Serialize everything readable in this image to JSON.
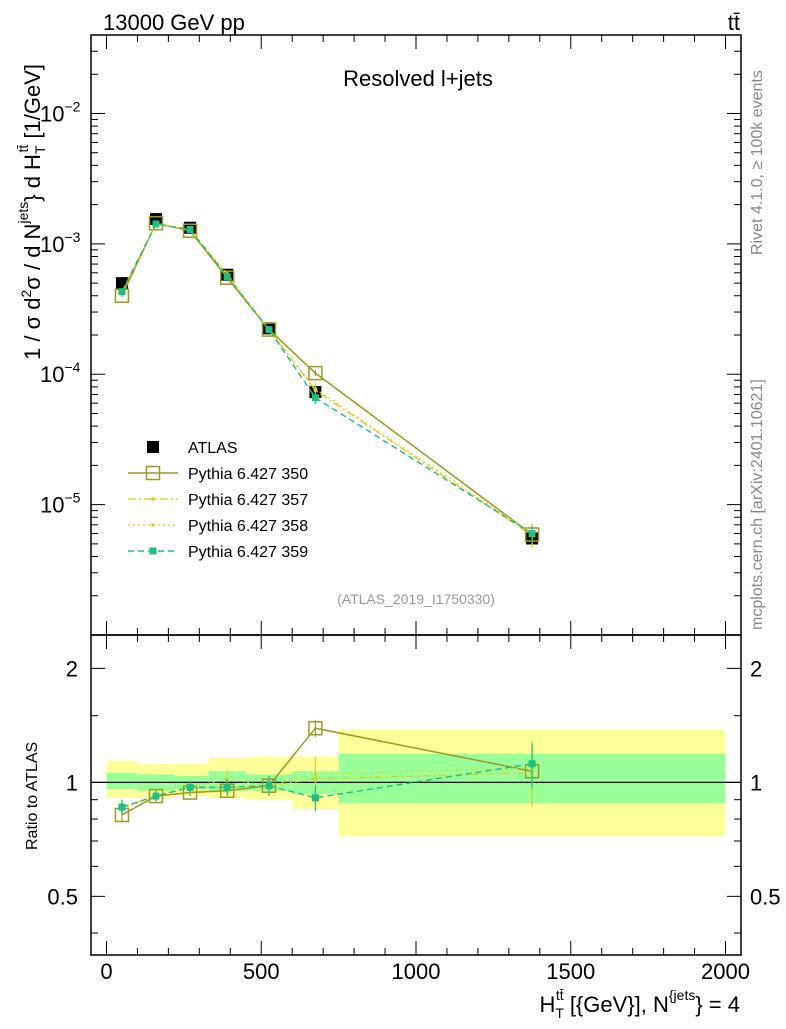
{
  "header": {
    "energy_label": "13000 GeV pp",
    "process_label": "tt̄",
    "watermark_rivet": "Rivet 4.1.0, ≥ 100k events",
    "watermark_mcplots": "mcplots.cern.ch [arXiv:2401.10621]"
  },
  "chart_data": [
    {
      "type": "scatter",
      "panel": "main",
      "title": "Resolved l+jets",
      "analysis_id": "(ATLAS_2019_I1750330)",
      "ylabel_parts": {
        "prefix": "1 / σ d",
        "sup2": "2",
        "mid": "σ / d N",
        "sup_jets": "jets",
        "mid2": "} d H",
        "sub_T": "T",
        "sup_tt": "tt̄",
        "unit": " [1/GeV]"
      },
      "yscale": "log",
      "ylim": [
        1e-06,
        0.04
      ],
      "xlim": [
        -50,
        2050
      ],
      "ytick_labels": [
        {
          "value": 1e-05,
          "base": "10",
          "exp": "−5"
        },
        {
          "value": 0.0001,
          "base": "10",
          "exp": "−4"
        },
        {
          "value": 0.001,
          "base": "10",
          "exp": "−3"
        },
        {
          "value": 0.01,
          "base": "10",
          "exp": "−2"
        }
      ],
      "legend_position": "bottom-left",
      "series": [
        {
          "name": "ATLAS",
          "style": "data",
          "color": "#000000",
          "x": [
            50,
            160,
            270,
            390,
            525,
            675,
            1375
          ],
          "y": [
            0.0005,
            0.00155,
            0.00133,
            0.00058,
            0.000225,
            7.3e-05,
            5.5e-06
          ],
          "yerr_rel": [
            0.04,
            0.02,
            0.02,
            0.03,
            0.03,
            0.06,
            0.12
          ]
        },
        {
          "name": "Pythia 6.427 350",
          "style": "open-square-solid",
          "color": "#9a9a22",
          "x": [
            50,
            160,
            270,
            390,
            525,
            675,
            1375
          ],
          "y": [
            0.0004,
            0.00144,
            0.00126,
            0.00055,
            0.00022,
            0.000102,
            5.9e-06
          ],
          "yerr_rel": [
            0.02,
            0.02,
            0.02,
            0.02,
            0.03,
            0.05,
            0.1
          ]
        },
        {
          "name": "Pythia 6.427 357",
          "style": "dashdot",
          "color": "#e6c619",
          "x": [
            50,
            160,
            270,
            390,
            525,
            675,
            1375
          ],
          "y": [
            0.00043,
            0.00142,
            0.00128,
            0.00057,
            0.00022,
            7.5e-05,
            5.8e-06
          ],
          "yerr_rel": [
            0.04,
            0.03,
            0.03,
            0.04,
            0.05,
            0.12,
            0.2
          ]
        },
        {
          "name": "Pythia 6.427 358",
          "style": "dotted",
          "color": "#d7d52a",
          "x": [
            50,
            160,
            270,
            390,
            525,
            675,
            1375
          ],
          "y": [
            0.00042,
            0.00143,
            0.00129,
            0.00059,
            0.00022,
            7.7e-05,
            6e-06
          ],
          "yerr_rel": [
            0.04,
            0.03,
            0.03,
            0.04,
            0.05,
            0.12,
            0.2
          ]
        },
        {
          "name": "Pythia 6.427 359",
          "style": "dashed-filled-square",
          "color": "#1fbf80",
          "x": [
            50,
            160,
            270,
            390,
            525,
            675,
            1375
          ],
          "y": [
            0.00043,
            0.00142,
            0.00129,
            0.00056,
            0.00022,
            6.6e-05,
            6e-06
          ],
          "yerr_rel": [
            0.04,
            0.03,
            0.03,
            0.04,
            0.05,
            0.1,
            0.15
          ]
        }
      ]
    },
    {
      "type": "scatter",
      "panel": "ratio",
      "ylabel": "Ratio to ATLAS",
      "xlabel_parts": {
        "main": "H",
        "sub_T": "T",
        "sup_tt": "tt̄",
        "rest": " [{GeV}], N",
        "sup_jets": "{jets",
        "tail": "} = 4"
      },
      "yscale": "log",
      "ylim": [
        0.35,
        2.45
      ],
      "xlim": [
        -50,
        2050
      ],
      "yticks": [
        0.5,
        1,
        2
      ],
      "ytick_labels": [
        "0.5",
        "1",
        "2"
      ],
      "xticks": [
        0,
        500,
        1000,
        1500,
        2000
      ],
      "xtick_labels": [
        "0",
        "500",
        "1000",
        "1500",
        "2000"
      ],
      "bins": [
        0,
        100,
        220,
        330,
        450,
        600,
        750,
        2000
      ],
      "band_inner": [
        [
          0.96,
          1.06
        ],
        [
          0.95,
          1.05
        ],
        [
          0.96,
          1.04
        ],
        [
          0.95,
          1.07
        ],
        [
          0.95,
          1.05
        ],
        [
          0.93,
          1.07
        ],
        [
          0.88,
          1.19
        ]
      ],
      "band_outer": [
        [
          0.91,
          1.14
        ],
        [
          0.91,
          1.12
        ],
        [
          0.92,
          1.12
        ],
        [
          0.91,
          1.16
        ],
        [
          0.9,
          1.17
        ],
        [
          0.85,
          1.17
        ],
        [
          0.72,
          1.38
        ]
      ],
      "series": [
        {
          "name": "Pythia 6.427 350",
          "x": [
            50,
            160,
            270,
            390,
            525,
            675,
            1375
          ],
          "y": [
            0.82,
            0.92,
            0.94,
            0.95,
            0.98,
            1.39,
            1.07
          ],
          "yerr": [
            0.03,
            0.02,
            0.02,
            0.03,
            0.03,
            0.07,
            0.12
          ]
        },
        {
          "name": "Pythia 6.427 357",
          "x": [
            50,
            160,
            270,
            390,
            525,
            675,
            1375
          ],
          "y": [
            0.86,
            0.92,
            0.97,
            0.97,
            0.98,
            1.02,
            1.06
          ],
          "yerr": [
            0.04,
            0.03,
            0.03,
            0.05,
            0.06,
            0.12,
            0.2
          ]
        },
        {
          "name": "Pythia 6.427 358",
          "x": [
            50,
            160,
            270,
            390,
            525,
            675,
            1375
          ],
          "y": [
            0.85,
            0.92,
            0.97,
            1.02,
            0.98,
            1.05,
            1.09
          ],
          "yerr": [
            0.04,
            0.03,
            0.03,
            0.05,
            0.06,
            0.12,
            0.2
          ]
        },
        {
          "name": "Pythia 6.427 359",
          "x": [
            50,
            160,
            270,
            390,
            525,
            675,
            1375
          ],
          "y": [
            0.86,
            0.92,
            0.97,
            0.97,
            0.98,
            0.91,
            1.12
          ],
          "yerr": [
            0.04,
            0.03,
            0.03,
            0.05,
            0.06,
            0.07,
            0.15
          ]
        }
      ]
    }
  ]
}
